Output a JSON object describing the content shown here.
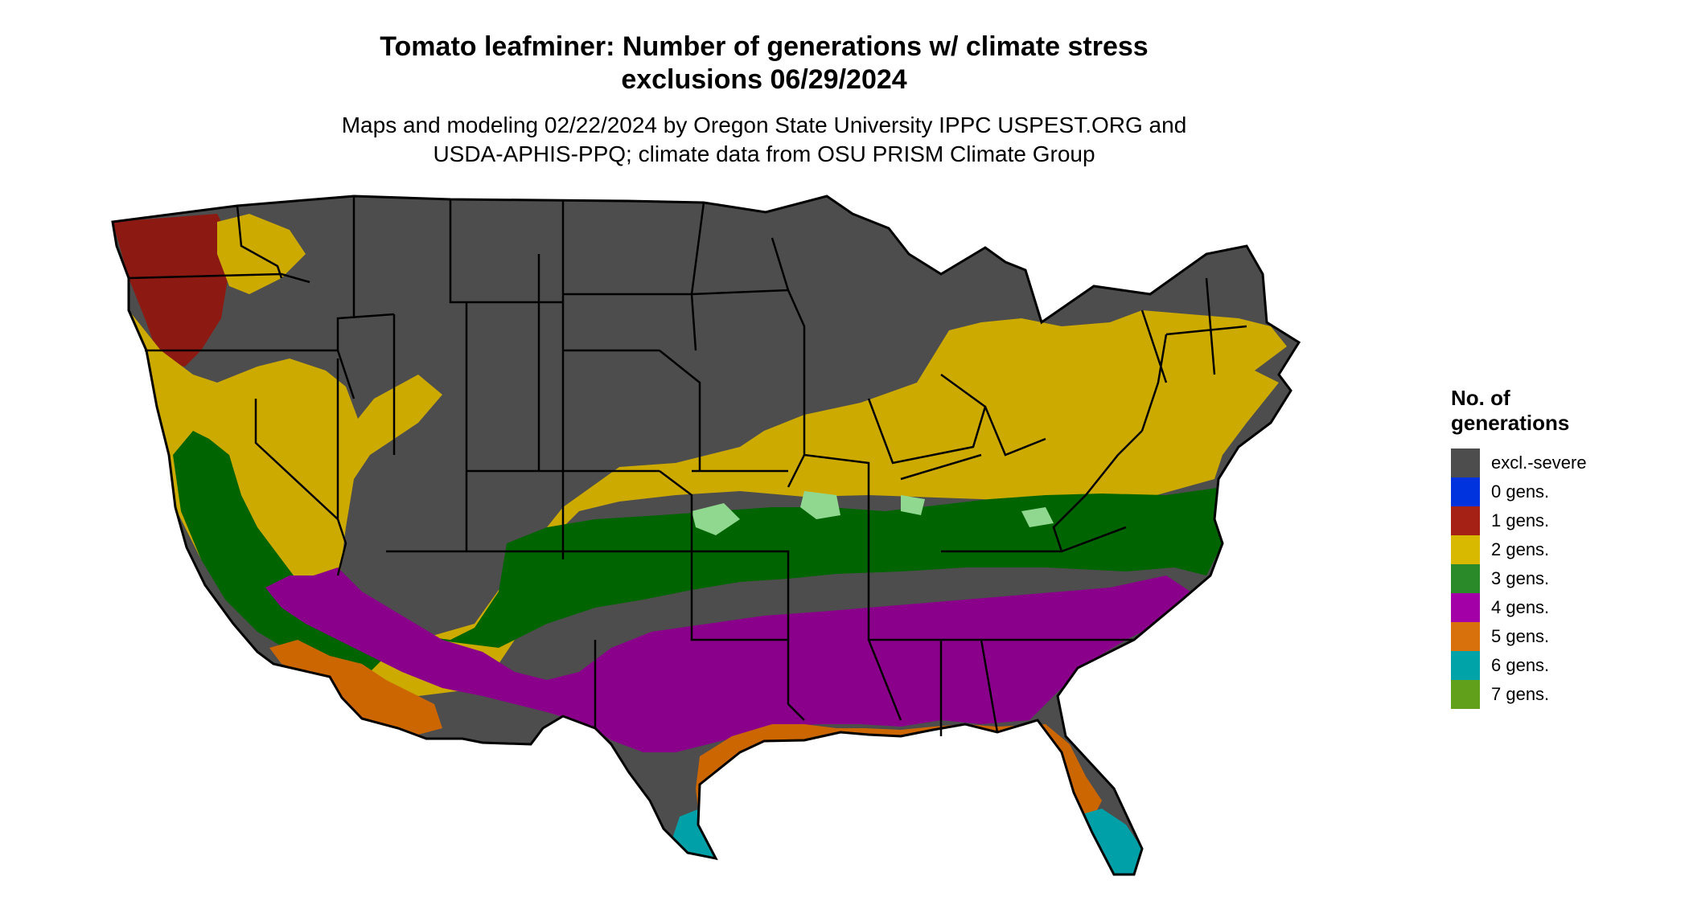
{
  "title": {
    "line1": "Tomato leafminer: Number of generations w/ climate stress",
    "line2": "exclusions 06/29/2024"
  },
  "subtitle": {
    "line1": "Maps and modeling 02/22/2024 by Oregon State University IPPC USPEST.ORG and",
    "line2": "USDA-APHIS-PPQ; climate data from OSU PRISM Climate Group"
  },
  "legend": {
    "title_line1": "No. of",
    "title_line2": "generations",
    "items": [
      {
        "label": "excl.-severe",
        "color": "#4d4d4d"
      },
      {
        "label": "0 gens.",
        "color": "#0033dd"
      },
      {
        "label": "1 gens.",
        "color": "#a52015"
      },
      {
        "label": "2 gens.",
        "color": "#d8b900"
      },
      {
        "label": "3 gens.",
        "color": "#2a8a2a"
      },
      {
        "label": "4 gens.",
        "color": "#a400a8"
      },
      {
        "label": "5 gens.",
        "color": "#d8700c"
      },
      {
        "label": "6 gens.",
        "color": "#00a3a8"
      },
      {
        "label": "7 gens.",
        "color": "#60a01a"
      }
    ]
  },
  "map": {
    "colors": {
      "excluded": "#4d4d4d",
      "one": "#8c1a12",
      "two": "#cdaa00",
      "three": "#006400",
      "four": "#8b008b",
      "five": "#cc6600",
      "six": "#00a0a8",
      "seven": "#55a015",
      "light_green": "#90d890",
      "borders": "#000000"
    }
  }
}
